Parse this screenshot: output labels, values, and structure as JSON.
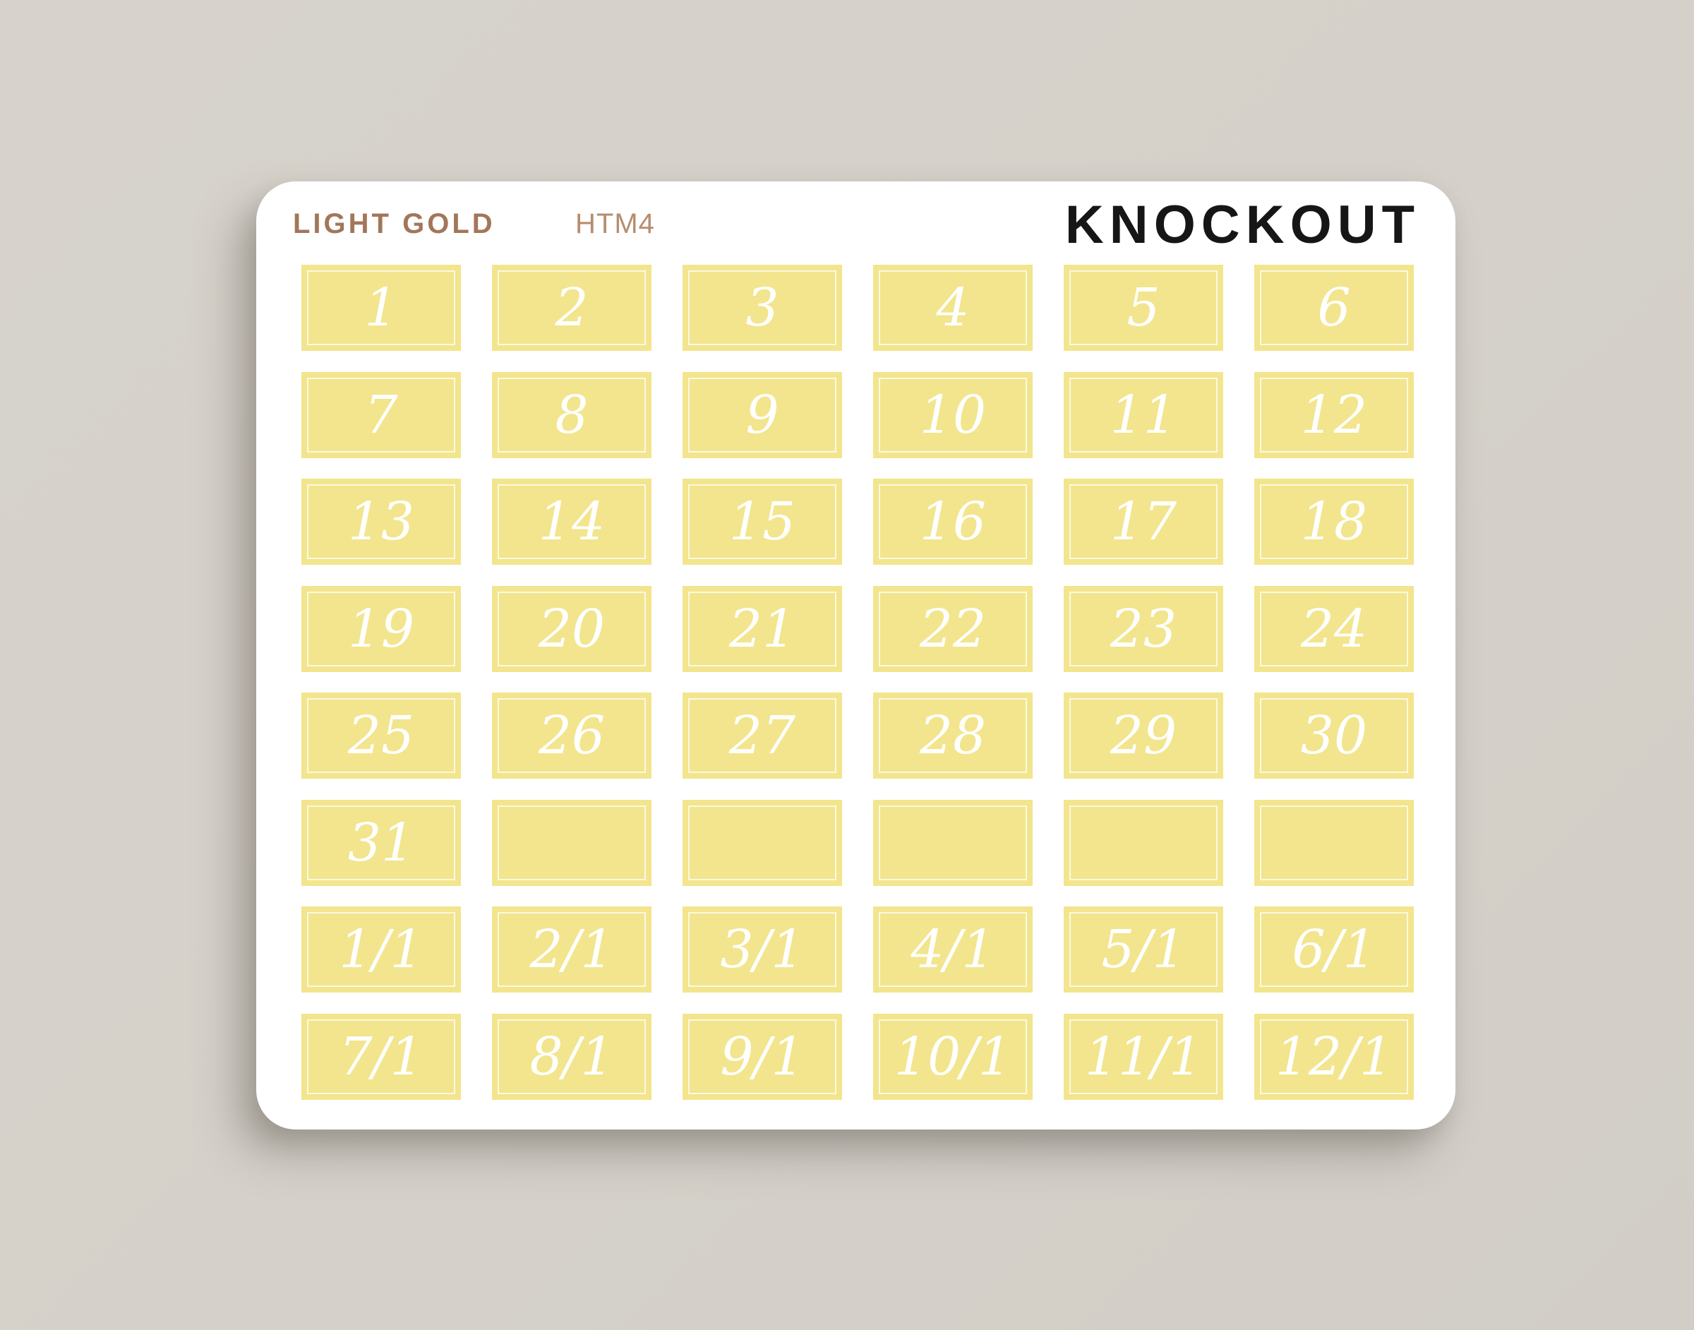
{
  "page": {
    "background_color": "#d5d1ca"
  },
  "sheet": {
    "background_color": "#ffffff",
    "color_name": "LIGHT GOLD",
    "product_code": "HTM4",
    "brand": "KNOCKOUT",
    "color_name_hex": "#a3765a",
    "product_code_hex": "#b68d6e",
    "brand_hex": "#161616"
  },
  "stickers": {
    "fill_color": "#f2e58d",
    "inner_border_color": "#ffffff",
    "label_color": "#ffffff",
    "columns": 6,
    "rows": 8,
    "labels": [
      "1",
      "2",
      "3",
      "4",
      "5",
      "6",
      "7",
      "8",
      "9",
      "10",
      "11",
      "12",
      "13",
      "14",
      "15",
      "16",
      "17",
      "18",
      "19",
      "20",
      "21",
      "22",
      "23",
      "24",
      "25",
      "26",
      "27",
      "28",
      "29",
      "30",
      "31",
      "",
      "",
      "",
      "",
      "",
      "1/1",
      "2/1",
      "3/1",
      "4/1",
      "5/1",
      "6/1",
      "7/1",
      "8/1",
      "9/1",
      "10/1",
      "11/1",
      "12/1"
    ]
  }
}
